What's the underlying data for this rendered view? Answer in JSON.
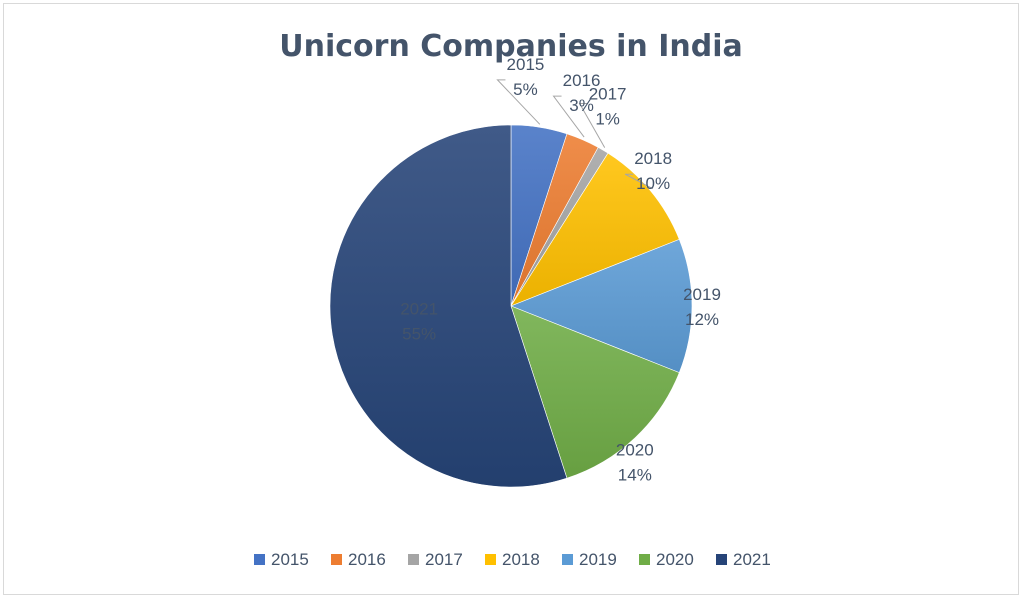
{
  "chart_data": {
    "type": "pie",
    "title": "Unicorn Companies in India",
    "categories": [
      "2015",
      "2016",
      "2017",
      "2018",
      "2019",
      "2020",
      "2021"
    ],
    "values": [
      5,
      3,
      1,
      10,
      12,
      14,
      55
    ],
    "value_labels": [
      "5%",
      "3%",
      "1%",
      "10%",
      "12%",
      "14%",
      "55%"
    ],
    "colors": [
      "#4472C4",
      "#ED7D31",
      "#A5A5A5",
      "#FFC000",
      "#5B9BD5",
      "#70AD47",
      "#264478"
    ],
    "legend": "bottom",
    "text_color": "#44546A"
  }
}
